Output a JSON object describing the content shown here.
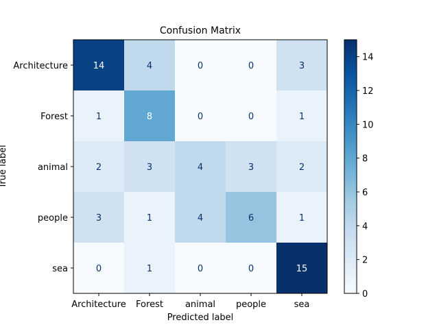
{
  "chart_data": {
    "type": "heatmap",
    "title": "Confusion Matrix",
    "xlabel": "Predicted label",
    "ylabel": "True label",
    "x_categories": [
      "Architecture",
      "Forest",
      "animal",
      "people",
      "sea"
    ],
    "y_categories": [
      "Architecture",
      "Forest",
      "animal",
      "people",
      "sea"
    ],
    "values": [
      [
        14,
        4,
        0,
        0,
        3
      ],
      [
        1,
        8,
        0,
        0,
        1
      ],
      [
        2,
        3,
        4,
        3,
        2
      ],
      [
        3,
        1,
        4,
        6,
        1
      ],
      [
        0,
        1,
        0,
        0,
        15
      ]
    ],
    "colormap": "Blues",
    "vmin": 0,
    "vmax": 15,
    "colorbar_ticks": [
      "0",
      "2",
      "4",
      "6",
      "8",
      "10",
      "12",
      "14"
    ],
    "grid": false
  }
}
